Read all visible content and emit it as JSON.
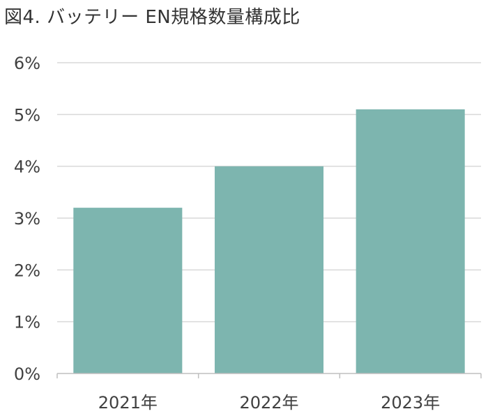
{
  "chart_data": {
    "type": "bar",
    "title": "図4. バッテリー EN規格数量構成比",
    "categories": [
      "2021年",
      "2022年",
      "2023年"
    ],
    "values": [
      3.2,
      4.0,
      5.1
    ],
    "ylim": [
      0,
      6
    ],
    "yticks": [
      "0%",
      "1%",
      "2%",
      "3%",
      "4%",
      "5%",
      "6%"
    ],
    "xlabel": "",
    "ylabel": "",
    "grid": true,
    "legend": "none",
    "colors": {
      "bar": "#7db5af",
      "grid": "#d9d9d9",
      "axis": "#bfbfbf",
      "text": "#404040"
    }
  }
}
